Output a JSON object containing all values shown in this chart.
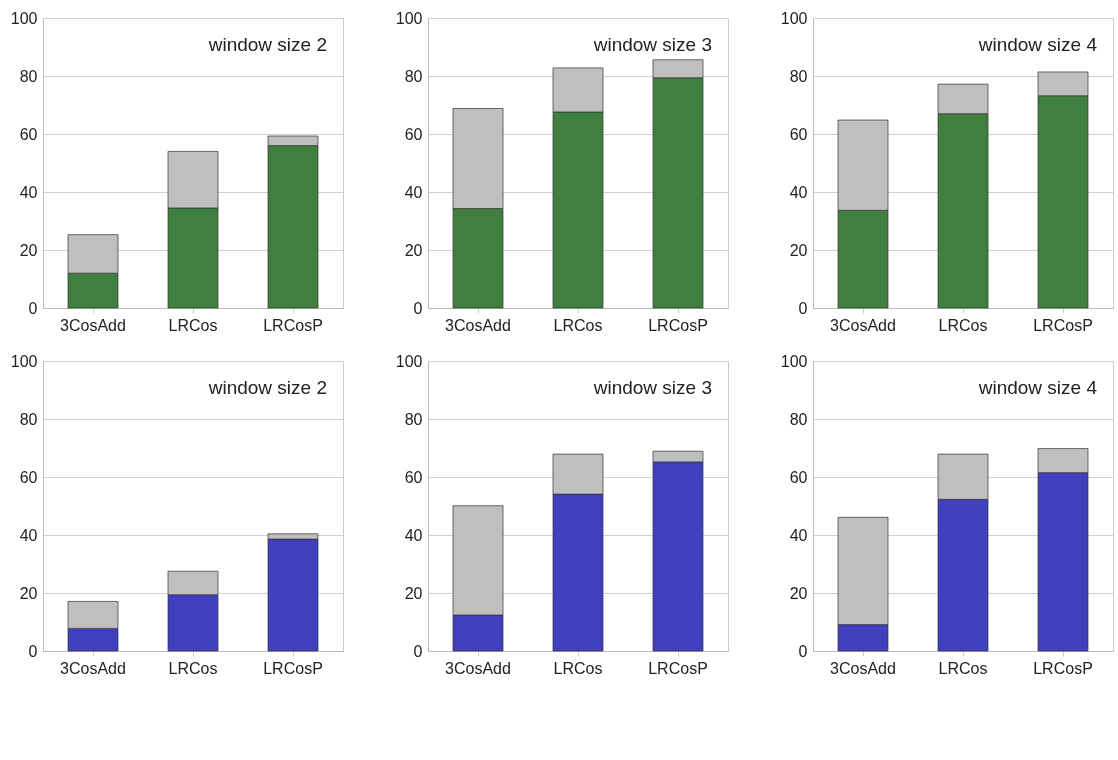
{
  "chart_data": [
    {
      "type": "bar",
      "stacked": true,
      "categories": [
        "3CosAdd",
        "LRCos",
        "LRCosP"
      ],
      "annotations": [
        "window size 2"
      ],
      "ylim": [
        0,
        100
      ],
      "yticks": [
        0,
        20,
        40,
        60,
        80,
        100
      ],
      "grid": "y",
      "series": [
        {
          "color": "#3f7f3f",
          "values": [
            12,
            34.5,
            56
          ]
        },
        {
          "color": "#bfbfbf",
          "values": [
            13.3,
            19.5,
            3.3
          ]
        }
      ]
    },
    {
      "type": "bar",
      "stacked": true,
      "categories": [
        "3CosAdd",
        "LRCos",
        "LRCosP"
      ],
      "annotations": [
        "window size 3"
      ],
      "ylim": [
        0,
        100
      ],
      "yticks": [
        0,
        20,
        40,
        60,
        80,
        100
      ],
      "grid": "y",
      "series": [
        {
          "color": "#3f7f3f",
          "values": [
            34.3,
            67.6,
            79.4
          ]
        },
        {
          "color": "#bfbfbf",
          "values": [
            34.5,
            15.2,
            6.2
          ]
        }
      ]
    },
    {
      "type": "bar",
      "stacked": true,
      "categories": [
        "3CosAdd",
        "LRCos",
        "LRCosP"
      ],
      "annotations": [
        "window size 4"
      ],
      "ylim": [
        0,
        100
      ],
      "yticks": [
        0,
        20,
        40,
        60,
        80,
        100
      ],
      "grid": "y",
      "series": [
        {
          "color": "#3f7f3f",
          "values": [
            33.7,
            67,
            73.2
          ]
        },
        {
          "color": "#bfbfbf",
          "values": [
            31.1,
            10.2,
            8.2
          ]
        }
      ]
    },
    {
      "type": "bar",
      "stacked": true,
      "categories": [
        "3CosAdd",
        "LRCos",
        "LRCosP"
      ],
      "annotations": [
        "window size 2"
      ],
      "ylim": [
        0,
        100
      ],
      "yticks": [
        0,
        20,
        40,
        60,
        80,
        100
      ],
      "grid": "y",
      "series": [
        {
          "color": "#3f3fbf",
          "values": [
            7.8,
            19.4,
            38.6
          ]
        },
        {
          "color": "#bfbfbf",
          "values": [
            9.3,
            8.1,
            1.8
          ]
        }
      ]
    },
    {
      "type": "bar",
      "stacked": true,
      "categories": [
        "3CosAdd",
        "LRCos",
        "LRCosP"
      ],
      "annotations": [
        "window size 3"
      ],
      "ylim": [
        0,
        100
      ],
      "yticks": [
        0,
        20,
        40,
        60,
        80,
        100
      ],
      "grid": "y",
      "series": [
        {
          "color": "#3f3fbf",
          "values": [
            12.4,
            54.1,
            65.2
          ]
        },
        {
          "color": "#bfbfbf",
          "values": [
            37.7,
            13.8,
            3.7
          ]
        }
      ]
    },
    {
      "type": "bar",
      "stacked": true,
      "categories": [
        "3CosAdd",
        "LRCos",
        "LRCosP"
      ],
      "annotations": [
        "window size 4"
      ],
      "ylim": [
        0,
        100
      ],
      "yticks": [
        0,
        20,
        40,
        60,
        80,
        100
      ],
      "grid": "y",
      "series": [
        {
          "color": "#3f3fbf",
          "values": [
            9.1,
            52.3,
            61.5
          ]
        },
        {
          "color": "#bfbfbf",
          "values": [
            37,
            15.6,
            8.3
          ]
        }
      ]
    }
  ]
}
